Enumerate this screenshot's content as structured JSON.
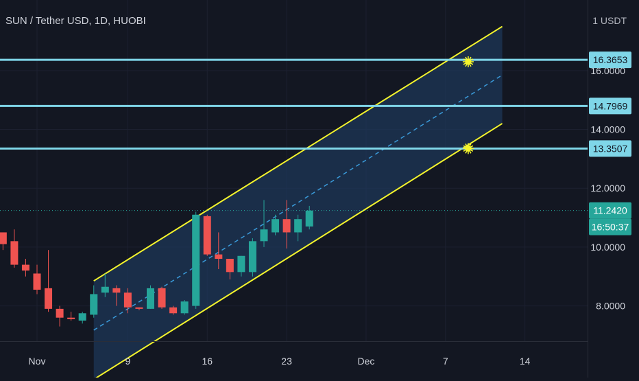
{
  "header": {
    "title": "SUN / Tether USD, 1D, HUOBI",
    "currency": "1 USDT"
  },
  "colors": {
    "background": "#131722",
    "up": "#26a69a",
    "down": "#ef5350",
    "channel_line": "#f5f52c",
    "channel_fill": "#1e3a5f",
    "midline": "#3a9ad9",
    "level_line": "#7fd6e8",
    "axis_text": "#d1d4dc",
    "grid": "#1c2030"
  },
  "chart_data": {
    "type": "candlestick",
    "y_axis": {
      "ticks": [
        "8.0000",
        "10.0000",
        "12.0000",
        "14.0000",
        "16.0000"
      ],
      "range": [
        6.8,
        18.4
      ]
    },
    "x_axis": {
      "ticks": [
        "Nov",
        "9",
        "16",
        "23",
        "Dec",
        "7",
        "14"
      ]
    },
    "levels": [
      {
        "label": "16.3653",
        "value": 16.3653
      },
      {
        "label": "14.7969",
        "value": 14.7969
      },
      {
        "label": "13.3507",
        "value": 13.3507
      }
    ],
    "last_price": {
      "label": "11.2420",
      "value": 11.242
    },
    "countdown": "16:50:37",
    "channel": {
      "upper": [
        {
          "day": 5,
          "value": 8.85
        },
        {
          "day": 41,
          "value": 17.5
        }
      ],
      "lower": [
        {
          "day": 5,
          "value": 5.5
        },
        {
          "day": 41,
          "value": 14.2
        }
      ]
    },
    "markers": [
      {
        "day": 38,
        "value": 16.3
      },
      {
        "day": 38,
        "value": 13.35
      }
    ],
    "candles": [
      {
        "day": -3,
        "open": 10.5,
        "high": 10.5,
        "low": 9.9,
        "close": 10.1
      },
      {
        "day": -2,
        "open": 10.2,
        "high": 10.6,
        "low": 9.3,
        "close": 9.4
      },
      {
        "day": -1,
        "open": 9.4,
        "high": 9.6,
        "low": 9.0,
        "close": 9.2
      },
      {
        "day": 0,
        "open": 9.1,
        "high": 9.4,
        "low": 8.4,
        "close": 8.55
      },
      {
        "day": 1,
        "open": 8.6,
        "high": 9.9,
        "low": 7.8,
        "close": 7.9
      },
      {
        "day": 2,
        "open": 7.9,
        "high": 8.0,
        "low": 7.3,
        "close": 7.6
      },
      {
        "day": 3,
        "open": 7.6,
        "high": 7.8,
        "low": 7.5,
        "close": 7.55
      },
      {
        "day": 4,
        "open": 7.5,
        "high": 7.8,
        "low": 7.4,
        "close": 7.75
      },
      {
        "day": 5,
        "open": 7.7,
        "high": 8.7,
        "low": 7.6,
        "close": 8.4
      },
      {
        "day": 6,
        "open": 8.45,
        "high": 9.1,
        "low": 8.3,
        "close": 8.65
      },
      {
        "day": 7,
        "open": 8.6,
        "high": 8.7,
        "low": 8.0,
        "close": 8.45
      },
      {
        "day": 8,
        "open": 8.45,
        "high": 8.6,
        "low": 7.75,
        "close": 7.95
      },
      {
        "day": 9,
        "open": 7.95,
        "high": 7.95,
        "low": 7.85,
        "close": 7.9
      },
      {
        "day": 10,
        "open": 7.9,
        "high": 8.7,
        "low": 7.9,
        "close": 8.6
      },
      {
        "day": 11,
        "open": 8.6,
        "high": 8.65,
        "low": 7.9,
        "close": 7.95
      },
      {
        "day": 12,
        "open": 7.95,
        "high": 8.0,
        "low": 7.7,
        "close": 7.75
      },
      {
        "day": 13,
        "open": 7.75,
        "high": 8.2,
        "low": 7.7,
        "close": 8.15
      },
      {
        "day": 14,
        "open": 8.0,
        "high": 11.2,
        "low": 7.9,
        "close": 11.1
      },
      {
        "day": 15,
        "open": 11.05,
        "high": 11.1,
        "low": 9.7,
        "close": 9.75
      },
      {
        "day": 16,
        "open": 9.75,
        "high": 10.5,
        "low": 9.25,
        "close": 9.6
      },
      {
        "day": 17,
        "open": 9.6,
        "high": 9.6,
        "low": 8.9,
        "close": 9.15
      },
      {
        "day": 18,
        "open": 9.15,
        "high": 9.7,
        "low": 9.0,
        "close": 9.7
      },
      {
        "day": 19,
        "open": 9.15,
        "high": 10.3,
        "low": 9.0,
        "close": 10.2
      },
      {
        "day": 20,
        "open": 10.2,
        "high": 11.6,
        "low": 10.0,
        "close": 10.6
      },
      {
        "day": 21,
        "open": 10.5,
        "high": 11.1,
        "low": 10.4,
        "close": 10.95
      },
      {
        "day": 22,
        "open": 10.95,
        "high": 11.6,
        "low": 9.95,
        "close": 10.5
      },
      {
        "day": 23,
        "open": 10.5,
        "high": 11.1,
        "low": 10.2,
        "close": 10.95
      },
      {
        "day": 24,
        "open": 10.7,
        "high": 11.4,
        "low": 10.6,
        "close": 11.24
      }
    ]
  }
}
